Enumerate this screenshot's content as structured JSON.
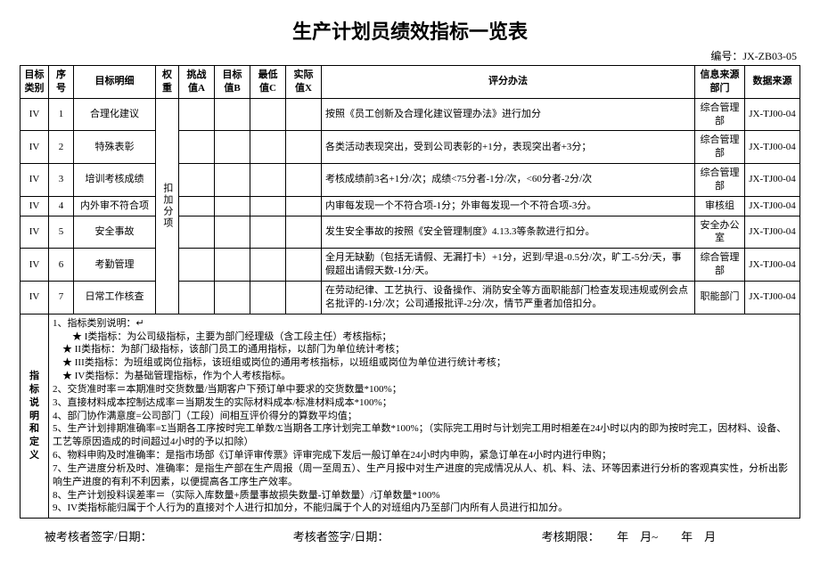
{
  "title": "生产计划员绩效指标一览表",
  "doc_code_label": "编号：",
  "doc_code": "JX-ZB03-05",
  "headers": {
    "category": "目标类别",
    "seq": "序号",
    "detail": "目标明细",
    "weight": "权重",
    "challenge": "挑战值A",
    "target": "目标值B",
    "min": "最低值C",
    "actual": "实际值X",
    "method": "评分办法",
    "source_dept": "信息来源部门",
    "data_source": "数据来源"
  },
  "weight_group_label": "扣加分项",
  "rows": [
    {
      "cat": "IV",
      "seq": "1",
      "detail": "合理化建议",
      "a": "",
      "b": "",
      "c": "",
      "x": "",
      "method": "按照《员工创新及合理化建议管理办法》进行加分",
      "source": "综合管理部",
      "data": "JX-TJ00-04"
    },
    {
      "cat": "IV",
      "seq": "2",
      "detail": "特殊表彰",
      "a": "",
      "b": "",
      "c": "",
      "x": "",
      "method": "各类活动表现突出，受到公司表彰的+1分，表现突出者+3分；",
      "source": "综合管理部",
      "data": "JX-TJ00-04"
    },
    {
      "cat": "IV",
      "seq": "3",
      "detail": "培训考核成绩",
      "a": "",
      "b": "",
      "c": "",
      "x": "",
      "method": "考核成绩前3名+1分/次；成绩<75分者-1分/次，<60分者-2分/次",
      "source": "综合管理部",
      "data": "JX-TJ00-04"
    },
    {
      "cat": "IV",
      "seq": "4",
      "detail": "内外审不符合项",
      "a": "",
      "b": "",
      "c": "",
      "x": "",
      "method": "内审每发现一个不符合项-1分；外审每发现一个不符合项-3分。",
      "source": "审核组",
      "data": "JX-TJ00-04"
    },
    {
      "cat": "IV",
      "seq": "5",
      "detail": "安全事故",
      "a": "",
      "b": "",
      "c": "",
      "x": "",
      "method": "发生安全事故的按照《安全管理制度》4.13.3等条款进行扣分。",
      "source": "安全办公室",
      "data": "JX-TJ00-04"
    },
    {
      "cat": "IV",
      "seq": "6",
      "detail": "考勤管理",
      "a": "",
      "b": "",
      "c": "",
      "x": "",
      "method": "全月无缺勤（包括无请假、无漏打卡）+1分，迟到/早退-0.5分/次，旷工-5分/天，事假超出请假天数-1分/天。",
      "source": "综合管理部",
      "data": "JX-TJ00-04"
    },
    {
      "cat": "IV",
      "seq": "7",
      "detail": "日常工作核查",
      "a": "",
      "b": "",
      "c": "",
      "x": "",
      "method": "在劳动纪律、工艺执行、设备操作、消防安全等方面职能部门检查发现违规或例会点名批评的-1分/次；公司通报批评-2分/次，情节严重者加倍扣分。",
      "source": "职能部门",
      "data": "JX-TJ00-04"
    }
  ],
  "notes_label": "指标说明和定义",
  "notes_lines": [
    "1、指标类别说明：↵",
    "　　★ I类指标：为公司级指标，主要为部门经理级（含工段主任）考核指标；",
    "　★ II类指标：为部门级指标，该部门员工的通用指标，以部门为单位统计考核；",
    "　★ III类指标：为班组或岗位指标，该班组或岗位的通用考核指标，以班组或岗位为单位进行统计考核；",
    "　★ IV类指标：为基础管理指标，作为个人考核指标。",
    "2、交货准时率＝本期准时交货数量/当期客户下预订单中要求的交货数量*100%；",
    "3、直接材料成本控制达成率＝当期发生的实际材料成本/标准材料成本*100%；",
    "4、部门协作满意度=公司部门（工段）间相互评价得分的算数平均值；",
    "5、生产计划排期准确率=Σ当期各工序按时完工单数/Σ当期各工序计划完工单数*100%；（实际完工用时与计划完工用时相差在24小时以内的即为按时完工，因材料、设备、工艺等原因造成的时间超过4小时的予以扣除）",
    "6、物料申购及时准确率：是指市场部《订单评审传票》评审完成下发后一般订单在24小时内申购，紧急订单在4小时内进行申购；",
    "7、生产进度分析及时、准确率：是指生产部在生产周报（周一至周五）、生产月报中对生产进度的完成情况从人、机、料、法、环等因素进行分析的客观真实性，分析出影响生产进度的有利不利因素，以便提高各工序生产效率。",
    "8、生产计划投料误差率＝（实际入库数量+质量事故损失数量-订单数量）/订单数量*100%",
    "9、IV类指标能归属于个人行为的直接对个人进行扣加分，不能归属于个人的对班组内乃至部门内所有人员进行扣加分。"
  ],
  "footer": {
    "signed_by": "被考核者签字/日期：",
    "assessor": "考核者签字/日期：",
    "period_label": "考核期限：",
    "period_value": "　　年　月~　　年　月"
  },
  "style": {
    "background": "#ffffff",
    "border_color": "#000000",
    "title_fontsize": 22,
    "body_fontsize": 11
  }
}
